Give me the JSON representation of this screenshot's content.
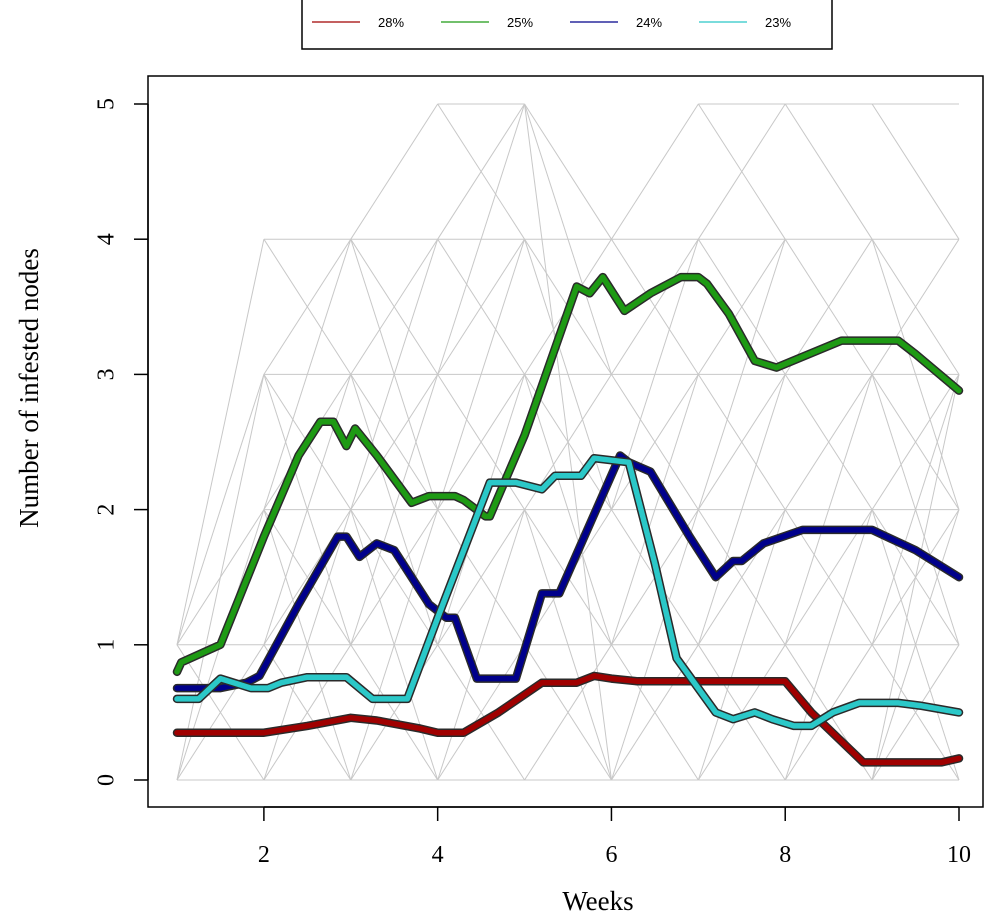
{
  "chart_data": {
    "type": "line",
    "xlabel": "Weeks",
    "ylabel": "Number of infested nodes",
    "xlim": [
      0.7,
      10.2
    ],
    "ylim": [
      -0.2,
      5.2
    ],
    "x_ticks": [
      2,
      4,
      6,
      8,
      10
    ],
    "y_ticks": [
      0,
      1,
      2,
      3,
      4,
      5
    ],
    "legend_position": "top (clipped)",
    "grid": false,
    "background_lines": {
      "color": "#c8c8c8",
      "description_note": "",
      "segments": [
        [
          1,
          0,
          2,
          0
        ],
        [
          1,
          0,
          2,
          1
        ],
        [
          1,
          0,
          2,
          2
        ],
        [
          1,
          0,
          2,
          3
        ],
        [
          1,
          1,
          2,
          0
        ],
        [
          1,
          1,
          2,
          1
        ],
        [
          1,
          1,
          2,
          2
        ],
        [
          1,
          1,
          2,
          3
        ],
        [
          1,
          1,
          2,
          4
        ],
        [
          2,
          0,
          3,
          0
        ],
        [
          2,
          0,
          3,
          1
        ],
        [
          2,
          0,
          3,
          2
        ],
        [
          2,
          1,
          3,
          0
        ],
        [
          2,
          1,
          3,
          1
        ],
        [
          2,
          1,
          3,
          2
        ],
        [
          2,
          1,
          3,
          3
        ],
        [
          2,
          2,
          3,
          0
        ],
        [
          2,
          2,
          3,
          1
        ],
        [
          2,
          2,
          3,
          2
        ],
        [
          2,
          2,
          3,
          3
        ],
        [
          2,
          2,
          3,
          4
        ],
        [
          2,
          3,
          3,
          1
        ],
        [
          2,
          3,
          3,
          2
        ],
        [
          2,
          3,
          3,
          3
        ],
        [
          2,
          3,
          3,
          4
        ],
        [
          2,
          4,
          3,
          4
        ],
        [
          2,
          4,
          3,
          3
        ],
        [
          3,
          0,
          4,
          0
        ],
        [
          3,
          0,
          4,
          1
        ],
        [
          3,
          0,
          4,
          2
        ],
        [
          3,
          1,
          4,
          0
        ],
        [
          3,
          1,
          4,
          1
        ],
        [
          3,
          1,
          4,
          2
        ],
        [
          3,
          1,
          4,
          3
        ],
        [
          3,
          2,
          4,
          0
        ],
        [
          3,
          2,
          4,
          1
        ],
        [
          3,
          2,
          4,
          2
        ],
        [
          3,
          2,
          4,
          3
        ],
        [
          3,
          2,
          4,
          4
        ],
        [
          3,
          3,
          4,
          1
        ],
        [
          3,
          3,
          4,
          2
        ],
        [
          3,
          3,
          4,
          3
        ],
        [
          3,
          3,
          4,
          4
        ],
        [
          3,
          4,
          4,
          2
        ],
        [
          3,
          4,
          4,
          3
        ],
        [
          3,
          4,
          4,
          4
        ],
        [
          3,
          4,
          4,
          5
        ],
        [
          4,
          0,
          5,
          0
        ],
        [
          4,
          0,
          5,
          1
        ],
        [
          4,
          0,
          5,
          2
        ],
        [
          4,
          1,
          5,
          0
        ],
        [
          4,
          1,
          5,
          1
        ],
        [
          4,
          1,
          5,
          2
        ],
        [
          4,
          1,
          5,
          3
        ],
        [
          4,
          2,
          5,
          1
        ],
        [
          4,
          2,
          5,
          2
        ],
        [
          4,
          2,
          5,
          3
        ],
        [
          4,
          2,
          5,
          4
        ],
        [
          4,
          3,
          5,
          2
        ],
        [
          4,
          3,
          5,
          3
        ],
        [
          4,
          3,
          5,
          4
        ],
        [
          4,
          3,
          5,
          5
        ],
        [
          4,
          4,
          5,
          3
        ],
        [
          4,
          4,
          5,
          4
        ],
        [
          4,
          4,
          5,
          5
        ],
        [
          4,
          5,
          5,
          5
        ],
        [
          4,
          5,
          5,
          4
        ],
        [
          5,
          0,
          6,
          0
        ],
        [
          5,
          0,
          6,
          1
        ],
        [
          5,
          1,
          6,
          0
        ],
        [
          5,
          1,
          6,
          1
        ],
        [
          5,
          1,
          6,
          2
        ],
        [
          5,
          2,
          6,
          0
        ],
        [
          5,
          2,
          6,
          1
        ],
        [
          5,
          2,
          6,
          2
        ],
        [
          5,
          2,
          6,
          3
        ],
        [
          5,
          3,
          6,
          1
        ],
        [
          5,
          3,
          6,
          2
        ],
        [
          5,
          3,
          6,
          3
        ],
        [
          5,
          3,
          6,
          4
        ],
        [
          5,
          4,
          6,
          2
        ],
        [
          5,
          4,
          6,
          3
        ],
        [
          5,
          4,
          6,
          4
        ],
        [
          5,
          5,
          6,
          3
        ],
        [
          5,
          5,
          6,
          4
        ],
        [
          5,
          5,
          6,
          0
        ],
        [
          6,
          0,
          7,
          0
        ],
        [
          6,
          0,
          7,
          1
        ],
        [
          6,
          0,
          7,
          2
        ],
        [
          6,
          1,
          7,
          0
        ],
        [
          6,
          1,
          7,
          1
        ],
        [
          6,
          1,
          7,
          2
        ],
        [
          6,
          1,
          7,
          3
        ],
        [
          6,
          2,
          7,
          1
        ],
        [
          6,
          2,
          7,
          2
        ],
        [
          6,
          2,
          7,
          3
        ],
        [
          6,
          2,
          7,
          4
        ],
        [
          6,
          3,
          7,
          2
        ],
        [
          6,
          3,
          7,
          3
        ],
        [
          6,
          3,
          7,
          4
        ],
        [
          6,
          4,
          7,
          3
        ],
        [
          6,
          4,
          7,
          4
        ],
        [
          6,
          4,
          7,
          5
        ],
        [
          7,
          0,
          8,
          0
        ],
        [
          7,
          0,
          8,
          1
        ],
        [
          7,
          0,
          8,
          2
        ],
        [
          7,
          1,
          8,
          0
        ],
        [
          7,
          1,
          8,
          1
        ],
        [
          7,
          1,
          8,
          2
        ],
        [
          7,
          1,
          8,
          3
        ],
        [
          7,
          2,
          8,
          1
        ],
        [
          7,
          2,
          8,
          2
        ],
        [
          7,
          2,
          8,
          3
        ],
        [
          7,
          2,
          8,
          4
        ],
        [
          7,
          3,
          8,
          2
        ],
        [
          7,
          3,
          8,
          3
        ],
        [
          7,
          3,
          8,
          4
        ],
        [
          7,
          4,
          8,
          3
        ],
        [
          7,
          4,
          8,
          4
        ],
        [
          7,
          4,
          8,
          5
        ],
        [
          7,
          5,
          8,
          5
        ],
        [
          7,
          5,
          8,
          4
        ],
        [
          8,
          0,
          9,
          0
        ],
        [
          8,
          0,
          9,
          1
        ],
        [
          8,
          0,
          9,
          2
        ],
        [
          8,
          1,
          9,
          0
        ],
        [
          8,
          1,
          9,
          1
        ],
        [
          8,
          1,
          9,
          2
        ],
        [
          8,
          1,
          9,
          3
        ],
        [
          8,
          2,
          9,
          1
        ],
        [
          8,
          2,
          9,
          2
        ],
        [
          8,
          2,
          9,
          3
        ],
        [
          8,
          3,
          9,
          2
        ],
        [
          8,
          3,
          9,
          3
        ],
        [
          8,
          3,
          9,
          4
        ],
        [
          8,
          4,
          9,
          3
        ],
        [
          8,
          4,
          9,
          4
        ],
        [
          8,
          5,
          9,
          5
        ],
        [
          8,
          5,
          9,
          4
        ],
        [
          9,
          0,
          10,
          0
        ],
        [
          9,
          0,
          10,
          1
        ],
        [
          9,
          0,
          10,
          2
        ],
        [
          9,
          0,
          10,
          3
        ],
        [
          9,
          1,
          10,
          0
        ],
        [
          9,
          1,
          10,
          1
        ],
        [
          9,
          1,
          10,
          2
        ],
        [
          9,
          1,
          10,
          3
        ],
        [
          9,
          2,
          10,
          0
        ],
        [
          9,
          2,
          10,
          1
        ],
        [
          9,
          2,
          10,
          2
        ],
        [
          9,
          2,
          10,
          3
        ],
        [
          9,
          3,
          10,
          1
        ],
        [
          9,
          3,
          10,
          2
        ],
        [
          9,
          3,
          10,
          3
        ],
        [
          9,
          3,
          10,
          4
        ],
        [
          9,
          4,
          10,
          2
        ],
        [
          9,
          4,
          10,
          3
        ],
        [
          9,
          4,
          10,
          4
        ],
        [
          9,
          5,
          10,
          5
        ],
        [
          9,
          5,
          10,
          4
        ]
      ]
    },
    "series": [
      {
        "name": "28%",
        "color": "#a00000",
        "points": [
          [
            1,
            0.35
          ],
          [
            2,
            0.35
          ],
          [
            2.5,
            0.4
          ],
          [
            3,
            0.46
          ],
          [
            3.3,
            0.44
          ],
          [
            3.8,
            0.38
          ],
          [
            4,
            0.35
          ],
          [
            4.3,
            0.35
          ],
          [
            4.7,
            0.5
          ],
          [
            5.2,
            0.72
          ],
          [
            5.6,
            0.72
          ],
          [
            5.8,
            0.77
          ],
          [
            6,
            0.75
          ],
          [
            6.3,
            0.73
          ],
          [
            7,
            0.73
          ],
          [
            7.5,
            0.73
          ],
          [
            8,
            0.73
          ],
          [
            8.3,
            0.5
          ],
          [
            8.9,
            0.13
          ],
          [
            9.5,
            0.13
          ],
          [
            9.8,
            0.13
          ],
          [
            10,
            0.16
          ]
        ]
      },
      {
        "name": "25%",
        "color": "#1e9a14",
        "points": [
          [
            1,
            0.8
          ],
          [
            1.05,
            0.87
          ],
          [
            1.5,
            1.0
          ],
          [
            2,
            1.8
          ],
          [
            2.4,
            2.4
          ],
          [
            2.65,
            2.65
          ],
          [
            2.8,
            2.65
          ],
          [
            2.95,
            2.47
          ],
          [
            3.05,
            2.6
          ],
          [
            3.3,
            2.4
          ],
          [
            3.7,
            2.05
          ],
          [
            3.9,
            2.1
          ],
          [
            4.2,
            2.1
          ],
          [
            4.3,
            2.07
          ],
          [
            4.55,
            1.95
          ],
          [
            4.6,
            1.95
          ],
          [
            5,
            2.55
          ],
          [
            5.6,
            3.65
          ],
          [
            5.75,
            3.6
          ],
          [
            5.9,
            3.72
          ],
          [
            6.15,
            3.47
          ],
          [
            6.45,
            3.6
          ],
          [
            6.8,
            3.72
          ],
          [
            7,
            3.72
          ],
          [
            7.1,
            3.67
          ],
          [
            7.35,
            3.45
          ],
          [
            7.65,
            3.1
          ],
          [
            7.9,
            3.05
          ],
          [
            8.65,
            3.25
          ],
          [
            9.3,
            3.25
          ],
          [
            9.5,
            3.15
          ],
          [
            10,
            2.88
          ]
        ]
      },
      {
        "name": "24%",
        "color": "#00008b",
        "points": [
          [
            1,
            0.68
          ],
          [
            1.5,
            0.68
          ],
          [
            1.8,
            0.72
          ],
          [
            1.95,
            0.77
          ],
          [
            2.4,
            1.3
          ],
          [
            2.85,
            1.8
          ],
          [
            2.95,
            1.8
          ],
          [
            3.1,
            1.65
          ],
          [
            3.3,
            1.75
          ],
          [
            3.5,
            1.7
          ],
          [
            3.9,
            1.3
          ],
          [
            4.1,
            1.2
          ],
          [
            4.2,
            1.2
          ],
          [
            4.45,
            0.75
          ],
          [
            4.9,
            0.75
          ],
          [
            5.2,
            1.38
          ],
          [
            5.4,
            1.38
          ],
          [
            6.1,
            2.4
          ],
          [
            6.2,
            2.35
          ],
          [
            6.45,
            2.28
          ],
          [
            6.9,
            1.8
          ],
          [
            7.2,
            1.5
          ],
          [
            7.4,
            1.62
          ],
          [
            7.5,
            1.62
          ],
          [
            7.75,
            1.75
          ],
          [
            8.2,
            1.85
          ],
          [
            8.5,
            1.85
          ],
          [
            9,
            1.85
          ],
          [
            9.5,
            1.7
          ],
          [
            10,
            1.5
          ]
        ]
      },
      {
        "name": "23%",
        "color": "#2bc8c8",
        "points": [
          [
            1,
            0.6
          ],
          [
            1.25,
            0.6
          ],
          [
            1.5,
            0.75
          ],
          [
            1.85,
            0.68
          ],
          [
            2.05,
            0.68
          ],
          [
            2.2,
            0.72
          ],
          [
            2.5,
            0.76
          ],
          [
            2.95,
            0.76
          ],
          [
            3.25,
            0.6
          ],
          [
            3.65,
            0.6
          ],
          [
            4,
            1.2
          ],
          [
            4.6,
            2.2
          ],
          [
            4.9,
            2.2
          ],
          [
            5.2,
            2.15
          ],
          [
            5.35,
            2.25
          ],
          [
            5.65,
            2.25
          ],
          [
            5.8,
            2.38
          ],
          [
            6.2,
            2.35
          ],
          [
            6.5,
            1.6
          ],
          [
            6.75,
            0.9
          ],
          [
            7.2,
            0.5
          ],
          [
            7.4,
            0.45
          ],
          [
            7.65,
            0.5
          ],
          [
            7.85,
            0.45
          ],
          [
            8.1,
            0.4
          ],
          [
            8.3,
            0.4
          ],
          [
            8.55,
            0.5
          ],
          [
            8.85,
            0.57
          ],
          [
            9.3,
            0.57
          ],
          [
            9.55,
            0.55
          ],
          [
            10,
            0.5
          ]
        ]
      }
    ]
  }
}
